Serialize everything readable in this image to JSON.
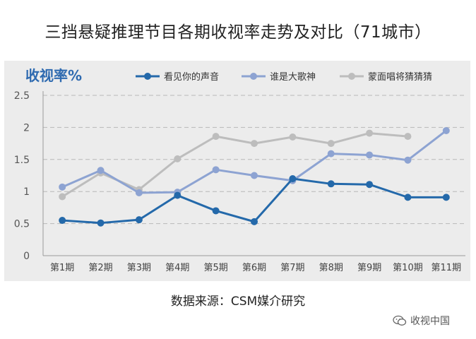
{
  "title": "三挡悬疑推理节目各期收视率走势及对比（71城市）",
  "source": "数据来源：CSM媒介研究",
  "watermark": "收视中国",
  "colors": {
    "panel": "#ececec",
    "grid": "#b8b8b8",
    "ylabel": "#2e6ab0"
  },
  "chart_data": {
    "type": "line",
    "ylabel": "收视率%",
    "ylim": [
      0,
      2.5
    ],
    "yticks": [
      "0",
      "0.5",
      "1",
      "1.5",
      "2",
      "2.5"
    ],
    "grid": true,
    "legend_position": "top",
    "categories": [
      "第1期",
      "第2期",
      "第3期",
      "第4期",
      "第5期",
      "第6期",
      "第7期",
      "第8期",
      "第9期",
      "第10期",
      "第11期"
    ],
    "series": [
      {
        "name": "看见你的声音",
        "color": "#2469aa",
        "values": [
          0.55,
          0.51,
          0.56,
          0.94,
          0.7,
          0.53,
          1.2,
          1.12,
          1.11,
          0.91,
          0.91
        ]
      },
      {
        "name": "谁是大歌神",
        "color": "#8da3d2",
        "values": [
          1.07,
          1.33,
          0.98,
          0.99,
          1.34,
          1.25,
          1.17,
          1.59,
          1.57,
          1.49,
          1.95
        ]
      },
      {
        "name": "蒙面唱将猜猜猜",
        "color": "#bdbdbd",
        "values": [
          0.92,
          1.29,
          1.03,
          1.51,
          1.86,
          1.75,
          1.85,
          1.75,
          1.91,
          1.86,
          null
        ]
      }
    ]
  }
}
